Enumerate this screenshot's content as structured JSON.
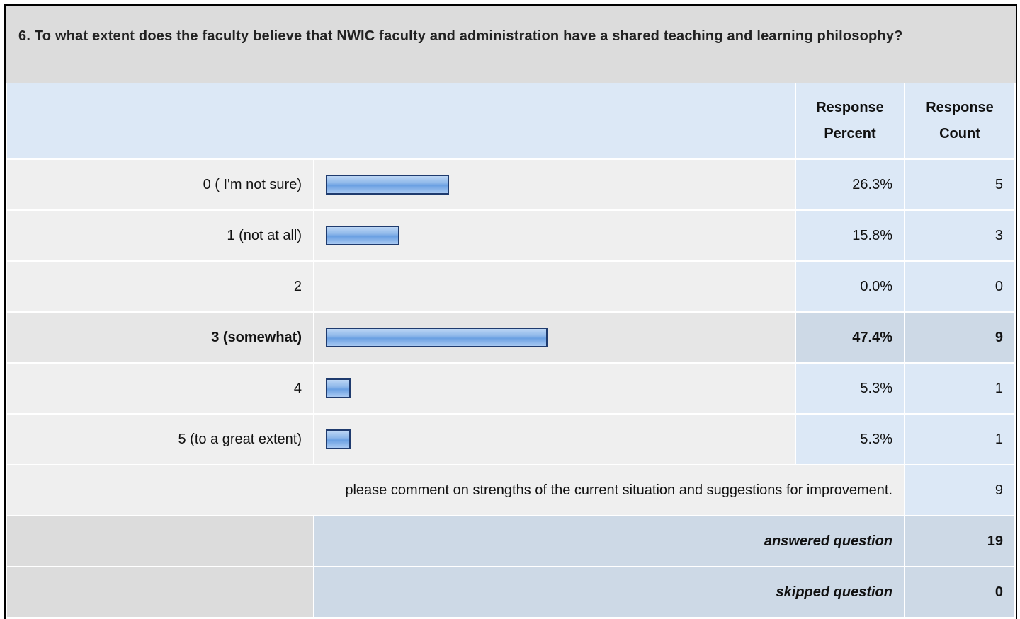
{
  "question": "6. To what extent does the faculty believe that NWIC faculty and administration have a shared teaching and learning philosophy?",
  "headers": {
    "percent": "Response Percent",
    "count": "Response Count"
  },
  "rows": [
    {
      "label": "0 ( I'm not sure)",
      "percent": 26.3,
      "percent_label": "26.3%",
      "count": 5
    },
    {
      "label": "1 (not at all)",
      "percent": 15.8,
      "percent_label": "15.8%",
      "count": 3
    },
    {
      "label": "2",
      "percent": 0,
      "percent_label": "0.0%",
      "count": 0
    },
    {
      "label": "3 (somewhat)",
      "percent": 47.4,
      "percent_label": "47.4%",
      "count": 9
    },
    {
      "label": "4",
      "percent": 5.3,
      "percent_label": "5.3%",
      "count": 1
    },
    {
      "label": "5 (to a great extent)",
      "percent": 5.3,
      "percent_label": "5.3%",
      "count": 1
    }
  ],
  "highlight_row": 3,
  "comment": {
    "text": "please comment on strengths of the current situation and suggestions for improvement.",
    "count": 9
  },
  "answered": {
    "label": "answered question",
    "count": 19
  },
  "skipped": {
    "label": "skipped question",
    "count": 0
  }
}
